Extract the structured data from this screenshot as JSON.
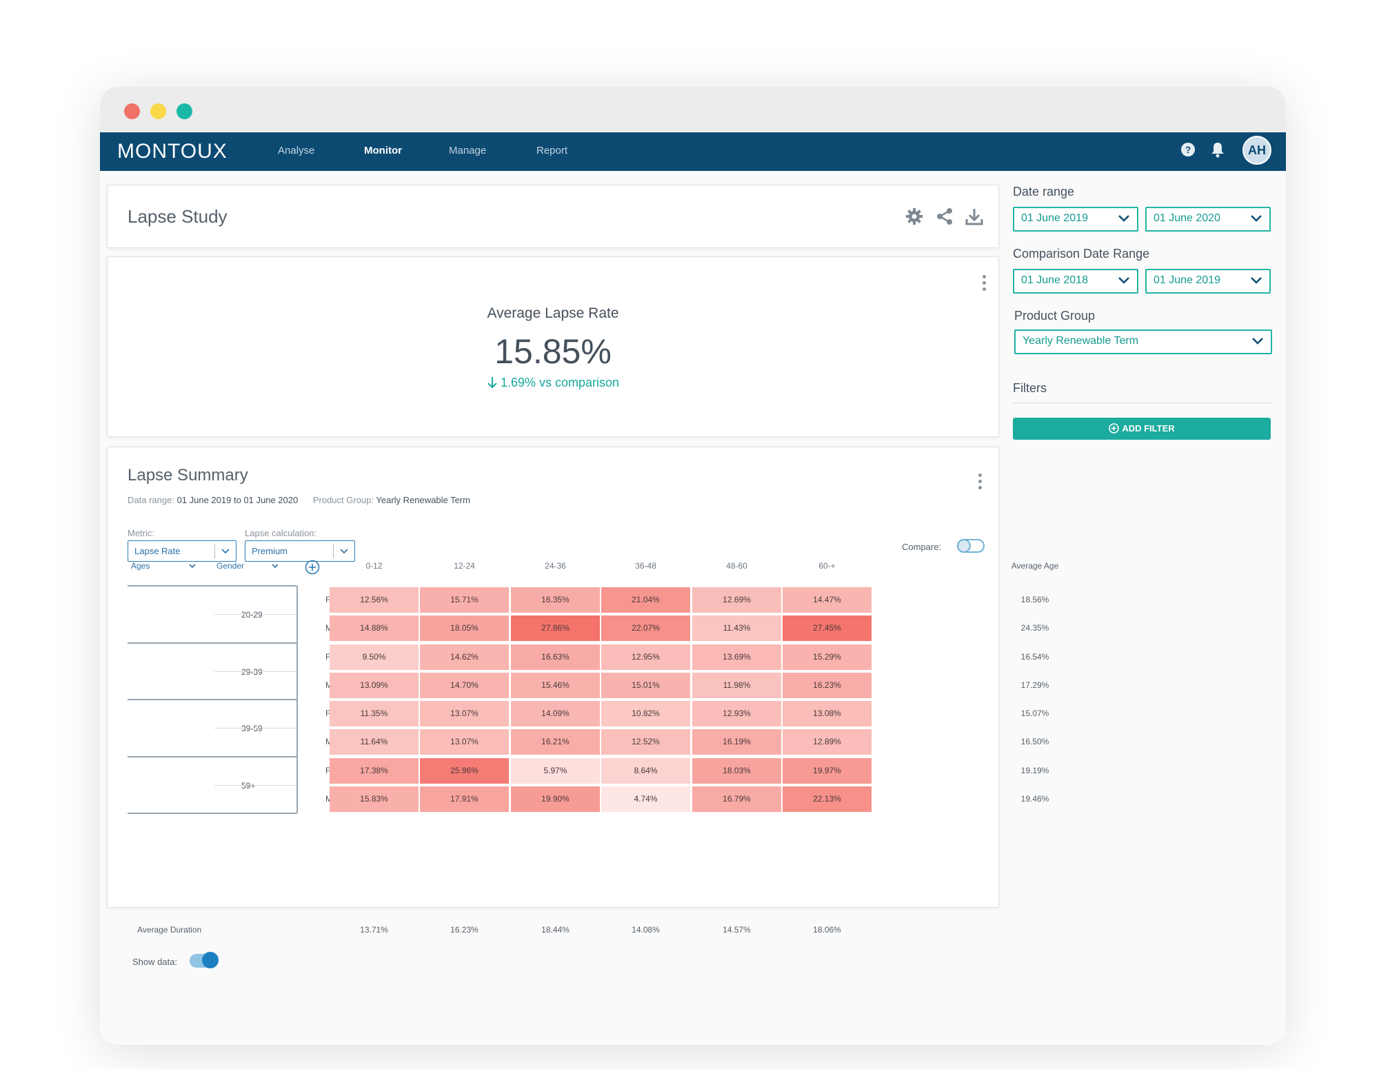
{
  "nav": {
    "logo": "MONTOUX",
    "items": [
      "Analyse",
      "Monitor",
      "Manage",
      "Report"
    ],
    "active": "Monitor",
    "avatar": "AH"
  },
  "header": {
    "title": "Lapse Study"
  },
  "kpi": {
    "title": "Average Lapse Rate",
    "value": "15.85%",
    "change": "1.69% vs comparison"
  },
  "summary": {
    "title": "Lapse Summary",
    "data_range_label": "Data range:",
    "data_range_value": "01 June 2019 to 01 June 2020",
    "product_group_label": "Product Group:",
    "product_group_value": "Yearly Renewable Term",
    "metric_label": "Metric:",
    "metric_value": "Lapse Rate",
    "calc_label": "Lapse calculation:",
    "calc_value": "Premium",
    "compare_label": "Compare:",
    "compare_on": false,
    "show_data_label": "Show data:",
    "show_data_on": true,
    "ages_header": "Ages",
    "gender_header": "Gender",
    "average_age_header": "Average Age",
    "average_duration_label": "Average Duration"
  },
  "sidebar": {
    "date_range_label": "Date range",
    "date_from": "01 June 2019",
    "date_to": "01 June 2020",
    "comparison_label": "Comparison Date Range",
    "comp_from": "01 June 2018",
    "comp_to": "01 June 2019",
    "product_group_label": "Product Group",
    "product_group_value": "Yearly Renewable Term",
    "filters_label": "Filters",
    "add_filter_label": "ADD FILTER"
  },
  "chart_data": {
    "type": "heatmap",
    "columns": [
      "0-12",
      "12-24",
      "24-36",
      "36-48",
      "48-60",
      "60-+"
    ],
    "rows": [
      {
        "age": "20-29",
        "gender": "Female",
        "values": [
          "12.56%",
          "15.71%",
          "16.35%",
          "21.04%",
          "12.69%",
          "14.47%"
        ],
        "average_age": "18.56%"
      },
      {
        "age": "20-29",
        "gender": "Male",
        "values": [
          "14.88%",
          "18.05%",
          "27.86%",
          "22.07%",
          "11.43%",
          "27.45%"
        ],
        "average_age": "24.35%"
      },
      {
        "age": "29-39",
        "gender": "Female",
        "values": [
          "9.50%",
          "14.62%",
          "16.63%",
          "12.95%",
          "13.69%",
          "15.29%"
        ],
        "average_age": "16.54%"
      },
      {
        "age": "29-39",
        "gender": "Male",
        "values": [
          "13.09%",
          "14.70%",
          "15.46%",
          "15.01%",
          "11.98%",
          "16.23%"
        ],
        "average_age": "17.29%"
      },
      {
        "age": "39-59",
        "gender": "Female",
        "values": [
          "11.35%",
          "13.07%",
          "14.09%",
          "10.82%",
          "12.93%",
          "13.08%"
        ],
        "average_age": "15.07%"
      },
      {
        "age": "39-59",
        "gender": "Male",
        "values": [
          "11.64%",
          "13.07%",
          "16.21%",
          "12.52%",
          "16.19%",
          "12.89%"
        ],
        "average_age": "16.50%"
      },
      {
        "age": "59+",
        "gender": "Female",
        "values": [
          "17.38%",
          "25.96%",
          "5.97%",
          "8.64%",
          "18.03%",
          "19.97%"
        ],
        "average_age": "19.19%"
      },
      {
        "age": "59+",
        "gender": "Male",
        "values": [
          "15.83%",
          "17.91%",
          "19.90%",
          "4.74%",
          "16.79%",
          "22.13%"
        ],
        "average_age": "19.46%"
      }
    ],
    "average_duration": [
      "13.71%",
      "16.23%",
      "18.44%",
      "14.08%",
      "14.57%",
      "18.06%"
    ],
    "colors": {
      "low": "#fde6e4",
      "high": "#f4736b",
      "accent": "#22b3a6",
      "nav": "#0c4a72"
    }
  }
}
